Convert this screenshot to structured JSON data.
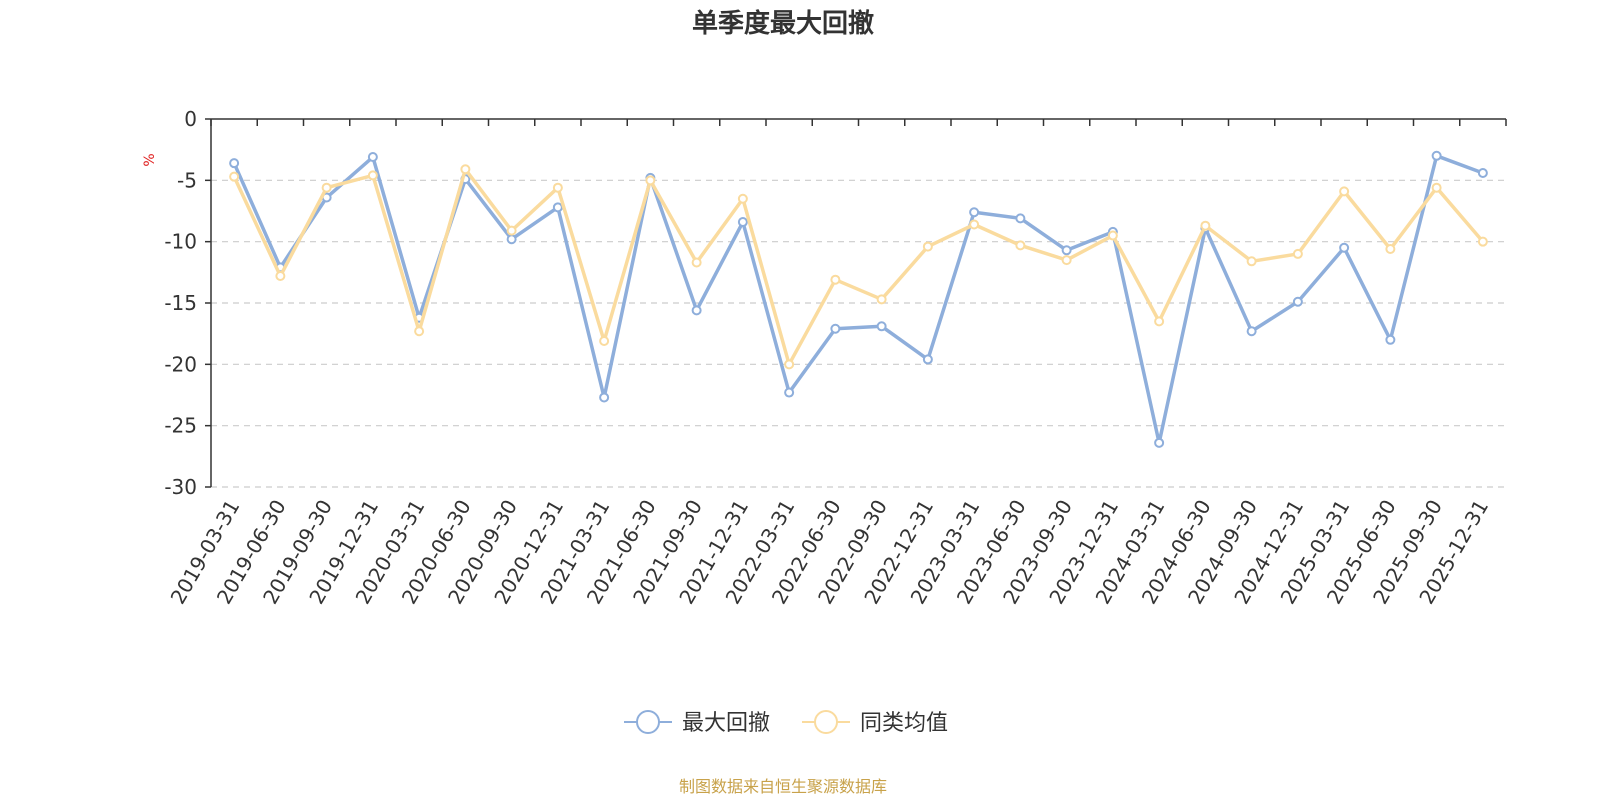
{
  "chart_data": {
    "type": "line",
    "title": "单季度最大回撤",
    "ylabel": "%",
    "ylim": [
      -30,
      0
    ],
    "yticks": [
      0,
      -5,
      -10,
      -15,
      -20,
      -25,
      -30
    ],
    "grid": true,
    "legend_position": "bottom-center",
    "categories": [
      "2019-03-31",
      "2019-06-30",
      "2019-09-30",
      "2019-12-31",
      "2020-03-31",
      "2020-06-30",
      "2020-09-30",
      "2020-12-31",
      "2021-03-31",
      "2021-06-30",
      "2021-09-30",
      "2021-12-31",
      "2022-03-31",
      "2022-06-30",
      "2022-09-30",
      "2022-12-31",
      "2023-03-31",
      "2023-06-30",
      "2023-09-30",
      "2023-12-31",
      "2024-03-31",
      "2024-06-30",
      "2024-09-30",
      "2024-12-31",
      "2025-03-31",
      "2025-06-30",
      "2025-09-30",
      "2025-12-31"
    ],
    "series": [
      {
        "name": "最大回撤",
        "color": "#8eaedb",
        "values": [
          -3.6,
          -12.1,
          -6.4,
          -3.1,
          -16.2,
          -4.9,
          -9.8,
          -7.2,
          -22.7,
          -4.8,
          -15.6,
          -8.4,
          -22.3,
          -17.1,
          -16.9,
          -19.6,
          -7.6,
          -8.1,
          -10.7,
          -9.2,
          -26.4,
          -8.9,
          -17.3,
          -14.9,
          -10.5,
          -18.0,
          -3.0,
          -4.4
        ]
      },
      {
        "name": "同类均值",
        "color": "#fadb9e",
        "values": [
          -4.7,
          -12.8,
          -5.6,
          -4.6,
          -17.3,
          -4.1,
          -9.1,
          -5.6,
          -18.1,
          -5.0,
          -11.7,
          -6.5,
          -20.0,
          -13.1,
          -14.7,
          -10.4,
          -8.6,
          -10.3,
          -11.5,
          -9.5,
          -16.5,
          -8.7,
          -11.6,
          -11.0,
          -5.9,
          -10.6,
          -5.6,
          -10.0
        ]
      }
    ],
    "source": "制图数据来自恒生聚源数据库",
    "colors": {
      "axis": "#333333",
      "grid": "#cccccc",
      "unit": "#e02020",
      "source": "#c8a24a"
    }
  }
}
